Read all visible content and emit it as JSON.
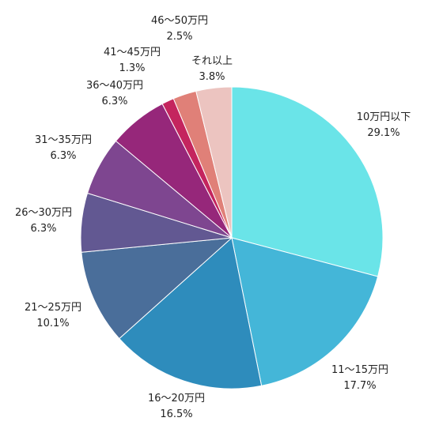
{
  "chart_data": {
    "type": "pie",
    "title": "",
    "start": "top",
    "direction": "clockwise",
    "slices": [
      {
        "label": "10万円以下",
        "value": 29.1,
        "display": "29.1%",
        "color": "#6ae4e8"
      },
      {
        "label": "11〜15万円",
        "value": 17.7,
        "display": "17.7%",
        "color": "#44b6d8"
      },
      {
        "label": "16〜20万円",
        "value": 16.5,
        "display": "16.5%",
        "color": "#2e8cbc"
      },
      {
        "label": "21〜25万円",
        "value": 10.1,
        "display": "10.1%",
        "color": "#4a6e9a"
      },
      {
        "label": "26〜30万円",
        "value": 6.3,
        "display": "6.3%",
        "color": "#625892"
      },
      {
        "label": "31〜35万円",
        "value": 6.3,
        "display": "6.3%",
        "color": "#7e4690"
      },
      {
        "label": "36〜40万円",
        "value": 6.3,
        "display": "6.3%",
        "color": "#96277a"
      },
      {
        "label": "41〜45万円",
        "value": 1.3,
        "display": "1.3%",
        "color": "#c4255e"
      },
      {
        "label": "46〜50万円",
        "value": 2.5,
        "display": "2.5%",
        "color": "#e08078"
      },
      {
        "label": "それ以上",
        "value": 3.8,
        "display": "3.8%",
        "color": "#ecc4c0"
      }
    ]
  }
}
